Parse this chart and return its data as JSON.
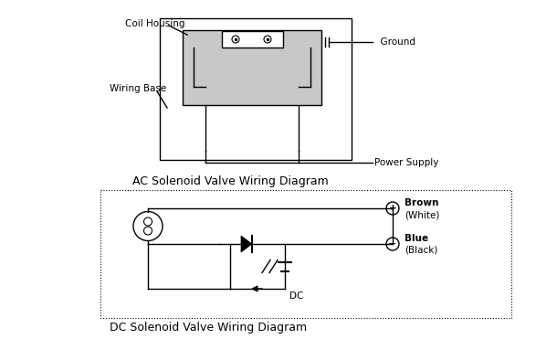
{
  "bg_color": "#ffffff",
  "line_color": "#000000",
  "title_ac": "AC Solenoid Valve Wiring Diagram",
  "title_dc": "DC Solenoid Valve Wiring Diagram",
  "label_coil_housing": "Coil Housing",
  "label_wiring_base": "Wiring Base",
  "label_ground": "  Ground",
  "label_power_supply": "Power Supply",
  "label_brown": "Brown",
  "label_white": "(White)",
  "label_blue": "Blue",
  "label_black": "(Black)",
  "label_dc": "DC",
  "font_size_title": 9,
  "font_size_label": 7.5,
  "font_size_small": 7
}
